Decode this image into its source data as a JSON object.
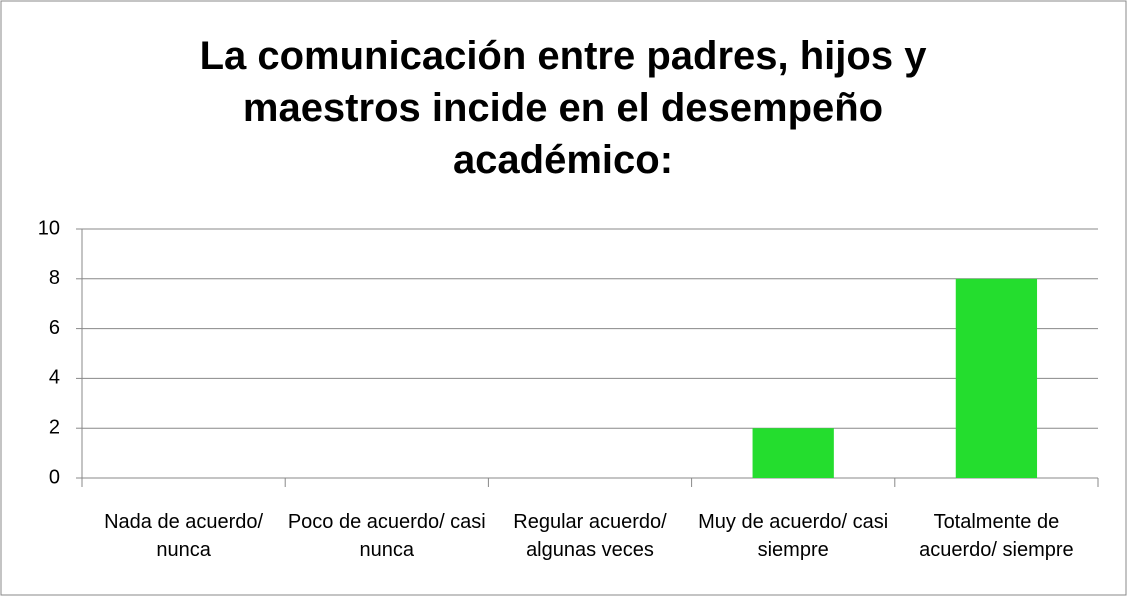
{
  "chart_data": {
    "type": "bar",
    "title": "La comunicación entre padres, hijos y maestros incide en el desempeño académico:",
    "categories": [
      "Nada de acuerdo/ nunca",
      "Poco de acuerdo/ casi nunca",
      "Regular acuerdo/ algunas veces",
      "Muy de acuerdo/ casi siempre",
      "Totalmente de acuerdo/ siempre"
    ],
    "values": [
      0,
      0,
      0,
      2,
      8
    ],
    "color": "#24dd2e",
    "ylim": [
      0,
      10
    ],
    "yticks": [
      0,
      2,
      4,
      6,
      8,
      10
    ],
    "grid": true
  }
}
